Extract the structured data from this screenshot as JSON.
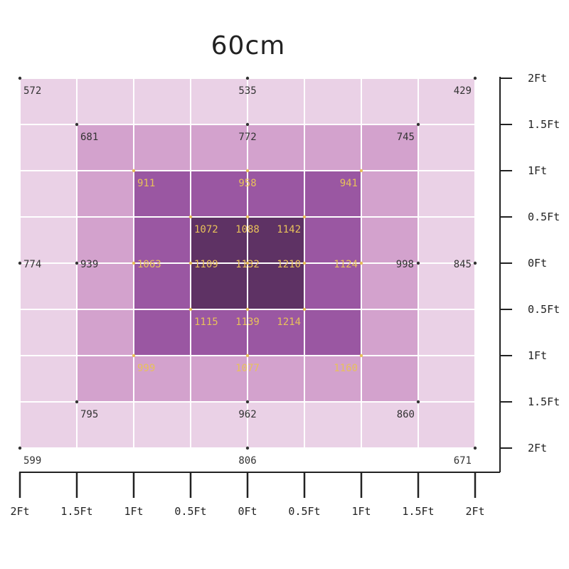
{
  "title": "60cm",
  "chart_data": {
    "type": "heatmap",
    "title": "60cm",
    "xlabel": "",
    "ylabel": "",
    "x_tick_labels": [
      "2Ft",
      "1.5Ft",
      "1Ft",
      "0.5Ft",
      "0Ft",
      "0.5Ft",
      "1Ft",
      "1.5Ft",
      "2Ft"
    ],
    "y_tick_labels": [
      "2Ft",
      "1.5Ft",
      "1Ft",
      "0.5Ft",
      "0Ft",
      "0.5Ft",
      "1Ft",
      "1.5Ft",
      "2Ft"
    ],
    "grid_levels": [
      [
        1,
        1,
        1,
        1,
        1,
        1,
        1,
        1
      ],
      [
        1,
        2,
        2,
        2,
        2,
        2,
        2,
        1
      ],
      [
        1,
        2,
        3,
        3,
        3,
        3,
        2,
        1
      ],
      [
        1,
        2,
        3,
        4,
        4,
        3,
        2,
        1
      ],
      [
        1,
        2,
        3,
        4,
        4,
        3,
        2,
        1
      ],
      [
        1,
        2,
        3,
        3,
        3,
        3,
        2,
        1
      ],
      [
        1,
        2,
        2,
        2,
        2,
        2,
        2,
        1
      ],
      [
        1,
        1,
        1,
        1,
        1,
        1,
        1,
        1
      ]
    ],
    "level_colors": [
      "#ead1e6",
      "#d3a2cd",
      "#9a57a2",
      "#5e3264"
    ],
    "points": [
      {
        "col": 0,
        "row": 0,
        "value": 572
      },
      {
        "col": 4,
        "row": 0,
        "value": 535
      },
      {
        "col": 8,
        "row": 0,
        "value": 429
      },
      {
        "col": 1,
        "row": 1,
        "value": 681
      },
      {
        "col": 4,
        "row": 1,
        "value": 772
      },
      {
        "col": 7,
        "row": 1,
        "value": 745
      },
      {
        "col": 2,
        "row": 2,
        "value": 911
      },
      {
        "col": 4,
        "row": 2,
        "value": 958
      },
      {
        "col": 6,
        "row": 2,
        "value": 941
      },
      {
        "col": 3,
        "row": 3,
        "value": 1072
      },
      {
        "col": 4,
        "row": 3,
        "value": 1088
      },
      {
        "col": 5,
        "row": 3,
        "value": 1142
      },
      {
        "col": 0,
        "row": 4,
        "value": 774
      },
      {
        "col": 1,
        "row": 4,
        "value": 939
      },
      {
        "col": 2,
        "row": 4,
        "value": 1063
      },
      {
        "col": 3,
        "row": 4,
        "value": 1109
      },
      {
        "col": 4,
        "row": 4,
        "value": 1132
      },
      {
        "col": 5,
        "row": 4,
        "value": 1210
      },
      {
        "col": 6,
        "row": 4,
        "value": 1124
      },
      {
        "col": 7,
        "row": 4,
        "value": 998
      },
      {
        "col": 8,
        "row": 4,
        "value": 845
      },
      {
        "col": 3,
        "row": 5,
        "value": 1115
      },
      {
        "col": 4,
        "row": 5,
        "value": 1139
      },
      {
        "col": 5,
        "row": 5,
        "value": 1214
      },
      {
        "col": 2,
        "row": 6,
        "value": 999
      },
      {
        "col": 4,
        "row": 6,
        "value": 1077
      },
      {
        "col": 6,
        "row": 6,
        "value": 1160
      },
      {
        "col": 1,
        "row": 7,
        "value": 795
      },
      {
        "col": 4,
        "row": 7,
        "value": 962
      },
      {
        "col": 7,
        "row": 7,
        "value": 860
      },
      {
        "col": 0,
        "row": 8,
        "value": 599
      },
      {
        "col": 4,
        "row": 8,
        "value": 806
      },
      {
        "col": 8,
        "row": 8,
        "value": 671
      }
    ],
    "label_colors": {
      "outer": "#333333",
      "inner": "#e8c15a"
    },
    "grid": true
  }
}
